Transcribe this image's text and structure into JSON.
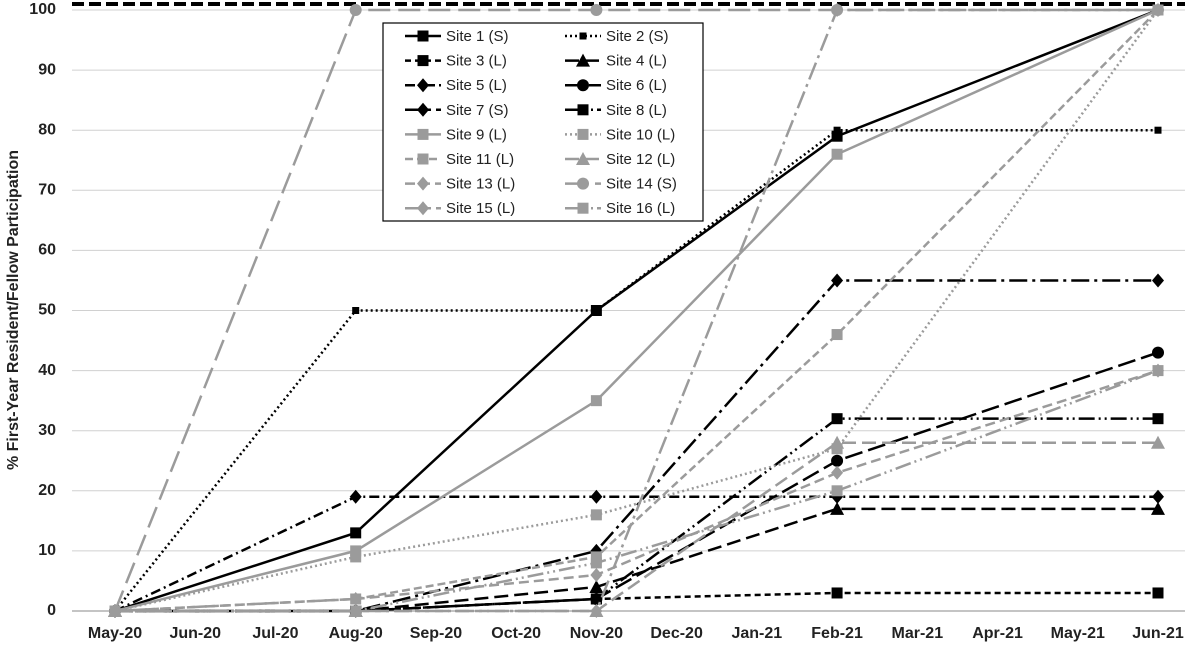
{
  "chart_data": {
    "type": "line",
    "ylabel": "% First-Year Resident/Fellow Participation",
    "xticks": [
      "May-20",
      "Jun-20",
      "Jul-20",
      "Aug-20",
      "Sep-20",
      "Oct-20",
      "Nov-20",
      "Dec-20",
      "Jan-21",
      "Feb-21",
      "Mar-21",
      "Apr-21",
      "May-21",
      "Jun-21"
    ],
    "x": [
      "May-20",
      "Aug-20",
      "Nov-20",
      "Feb-21",
      "Jun-21"
    ],
    "ylim": [
      0,
      100
    ],
    "yticks": [
      0,
      10,
      20,
      30,
      40,
      50,
      60,
      70,
      80,
      90,
      100
    ],
    "grid": true,
    "series": [
      {
        "name": "Site 1 (S)",
        "color": "#000000",
        "dash": "none",
        "marker": "square",
        "values": [
          0,
          13,
          50,
          79,
          100
        ]
      },
      {
        "name": "Site 2 (S)",
        "color": "#000000",
        "dash": "2,3",
        "marker": "small-square",
        "values": [
          0,
          50,
          50,
          80,
          80
        ]
      },
      {
        "name": "Site 3 (L)",
        "color": "#000000",
        "dash": "6,4",
        "marker": "square",
        "values": [
          0,
          0,
          2,
          3,
          3
        ]
      },
      {
        "name": "Site 4 (L)",
        "color": "#000000",
        "dash": "14,6",
        "marker": "triangle",
        "values": [
          0,
          0,
          4,
          17,
          17
        ]
      },
      {
        "name": "Site 5 (L)",
        "color": "#000000",
        "dash": "10,4,2,4",
        "marker": "diamond",
        "values": [
          0,
          19,
          19,
          19,
          19
        ]
      },
      {
        "name": "Site 6 (L)",
        "color": "#000000",
        "dash": "18,6",
        "marker": "circle",
        "values": [
          0,
          0,
          2,
          25,
          43
        ]
      },
      {
        "name": "Site 7 (S)",
        "color": "#000000",
        "dash": "18,5,3,5",
        "marker": "diamond",
        "values": [
          0,
          0,
          10,
          55,
          55
        ]
      },
      {
        "name": "Site 8 (L)",
        "color": "#000000",
        "dash": "16,4,2,4,2,4",
        "marker": "square",
        "values": [
          0,
          0,
          2,
          32,
          32
        ]
      },
      {
        "name": "Site 9 (L)",
        "color": "#9b9b9b",
        "dash": "none",
        "marker": "square",
        "values": [
          0,
          10,
          35,
          76,
          100
        ]
      },
      {
        "name": "Site 10 (L)",
        "color": "#9b9b9b",
        "dash": "2,3",
        "marker": "square",
        "values": [
          0,
          9,
          16,
          27,
          100
        ]
      },
      {
        "name": "Site 11 (L)",
        "color": "#9b9b9b",
        "dash": "8,4",
        "marker": "square",
        "values": [
          0,
          2,
          9,
          46,
          100
        ]
      },
      {
        "name": "Site 12 (L)",
        "color": "#9b9b9b",
        "dash": "14,6",
        "marker": "triangle",
        "values": [
          0,
          0,
          0,
          28,
          28
        ]
      },
      {
        "name": "Site 13 (L)",
        "color": "#9b9b9b",
        "dash": "10,5",
        "marker": "diamond",
        "values": [
          0,
          2,
          6,
          23,
          40
        ]
      },
      {
        "name": "Site 14 (S)",
        "color": "#9b9b9b",
        "dash": "22,8",
        "marker": "circle",
        "values": [
          0,
          100,
          100,
          100,
          100
        ]
      },
      {
        "name": "Site 15 (L)",
        "color": "#9b9b9b",
        "dash": "18,5,3,5",
        "marker": "diamond",
        "values": [
          0,
          0,
          0,
          100,
          100
        ]
      },
      {
        "name": "Site 16 (L)",
        "color": "#9b9b9b",
        "dash": "16,4,2,4,2,4",
        "marker": "square",
        "values": [
          0,
          0,
          8,
          20,
          40
        ]
      }
    ]
  }
}
